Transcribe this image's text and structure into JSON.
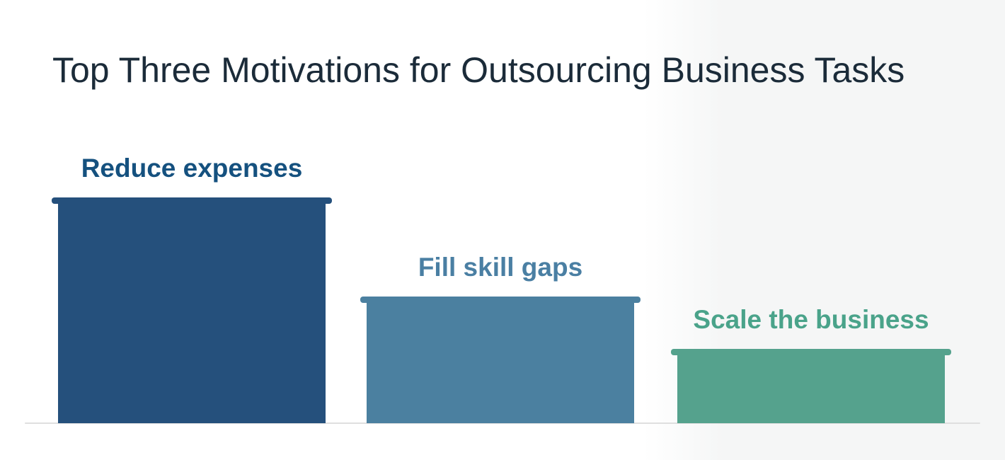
{
  "title": "Top Three Motivations for Outsourcing Business Tasks",
  "title_color": "#1b2b39",
  "background": {
    "left_color": "#ffffff",
    "right_color": "#f5f6f6"
  },
  "axis": {
    "baseline_color": "#dfdfdf"
  },
  "chart_data": {
    "type": "bar",
    "title": "Top Three Motivations for Outsourcing Business Tasks",
    "categories": [
      "Reduce expenses",
      "Fill skill gaps",
      "Scale the business"
    ],
    "values": [
      100,
      56,
      33
    ],
    "values_note": "no numeric axis or data labels are shown; values are relative bar heights as percent of the tallest bar",
    "xlabel": "",
    "ylabel": "",
    "grid": false,
    "legend": false,
    "label_position": "above-bar",
    "bars": [
      {
        "label": "Reduce expenses",
        "value": 100,
        "bar_color": "#25507c",
        "label_color": "#15517f"
      },
      {
        "label": "Fill skill gaps",
        "value": 56,
        "bar_color": "#4b80a0",
        "label_color": "#4a7fa3"
      },
      {
        "label": "Scale the business",
        "value": 33,
        "bar_color": "#55a28d",
        "label_color": "#4aa38a"
      }
    ]
  }
}
